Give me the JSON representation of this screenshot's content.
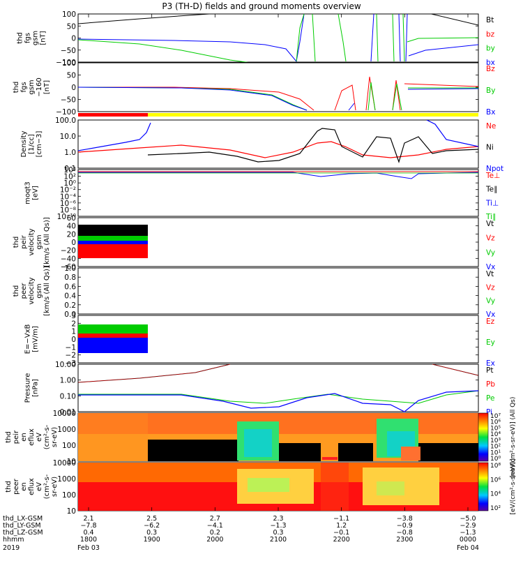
{
  "title": "P3 (TH-D) fields and ground moments overview",
  "colors": {
    "black": "#000000",
    "red": "#ff0000",
    "green": "#00cc00",
    "blue": "#0000ff",
    "yellow": "#ffff00"
  },
  "chart_data": [
    {
      "type": "line",
      "panel": "fgs",
      "ylabel": [
        "thd",
        "fgs",
        "gsm",
        "[nT]"
      ],
      "ylim": [
        -100,
        100
      ],
      "yticks": [
        "100",
        "50",
        "0",
        "−50",
        "−100"
      ],
      "legend": [
        {
          "name": "Bt",
          "color": "black"
        },
        {
          "name": "bz",
          "color": "red"
        },
        {
          "name": "by",
          "color": "green"
        },
        {
          "name": "bx",
          "color": "blue"
        }
      ]
    },
    {
      "type": "line",
      "panel": "fgs-1 clipped",
      "ylabel": [
        "thd",
        "fgs",
        "gsm",
        "−160",
        "[nT]"
      ],
      "ylim": [
        -125,
        125
      ],
      "yticks": [
        "100",
        "50",
        "0",
        "−50",
        "−100"
      ],
      "legend": [
        {
          "name": "Bz",
          "color": "red"
        },
        {
          "name": "By",
          "color": "green"
        },
        {
          "name": "Bx",
          "color": "blue"
        }
      ]
    },
    {
      "type": "line",
      "panel": "density",
      "ylabel": [
        "Density",
        "[1/cc]",
        "[cm−3]"
      ],
      "scale": "log",
      "ylim": [
        0.01,
        100
      ],
      "yticks": [
        "100.0",
        "10.0",
        "1.0",
        "0.1"
      ],
      "legend": [
        {
          "name": "Ne",
          "color": "red"
        },
        {
          "name": "Ni",
          "color": "black"
        },
        {
          "name": "Npot",
          "color": "blue"
        }
      ]
    },
    {
      "type": "line",
      "panel": "temperature",
      "ylabel": [
        "moqt3",
        "[eV]"
      ],
      "scale": "log",
      "yticks": [
        "10⁴",
        "10²",
        "10⁰",
        "10⁻²",
        "10⁻⁴",
        "10⁻⁶",
        "10⁻⁸",
        "10⁻¹⁰"
      ],
      "legend": [
        {
          "name": "Te⊥",
          "color": "red"
        },
        {
          "name": "Te∥",
          "color": "black"
        },
        {
          "name": "Ti⊥",
          "color": "blue"
        },
        {
          "name": "Ti∥",
          "color": "green"
        }
      ]
    },
    {
      "type": "line",
      "panel": "peir velocity",
      "ylabel": [
        "thd",
        "peir",
        "velocity",
        "gsm",
        "[km/s (All Qs)]"
      ],
      "ylim": [
        -60,
        60
      ],
      "yticks": [
        "60",
        "40",
        "20",
        "0",
        "−20",
        "−40",
        "−60"
      ],
      "legend": [
        {
          "name": "Vt",
          "color": "black"
        },
        {
          "name": "Vz",
          "color": "red"
        },
        {
          "name": "Vy",
          "color": "green"
        },
        {
          "name": "Vx",
          "color": "blue"
        }
      ]
    },
    {
      "type": "line",
      "panel": "peer velocity",
      "ylabel": [
        "thd",
        "peer",
        "velocity",
        "gsm",
        "[km/s (All Qs)]"
      ],
      "ylim": [
        0,
        1
      ],
      "yticks": [
        "1.0",
        "0.8",
        "0.6",
        "0.4",
        "0.2",
        "0.0"
      ],
      "legend": [
        {
          "name": "Vt",
          "color": "black"
        },
        {
          "name": "Vz",
          "color": "red"
        },
        {
          "name": "Vy",
          "color": "green"
        },
        {
          "name": "Vx",
          "color": "blue"
        }
      ]
    },
    {
      "type": "line",
      "panel": "E field",
      "ylabel": [
        "E=−VxB",
        "[mV/m]"
      ],
      "ylim": [
        -3,
        3
      ],
      "yticks": [
        "3",
        "2",
        "1",
        "0",
        "−1",
        "−2",
        "−3"
      ],
      "legend": [
        {
          "name": "Ez",
          "color": "red"
        },
        {
          "name": "Ey",
          "color": "green"
        },
        {
          "name": "Ex",
          "color": "blue"
        }
      ]
    },
    {
      "type": "line",
      "panel": "pressure",
      "ylabel": [
        "Pressure",
        "[nPa]"
      ],
      "scale": "log",
      "yticks": [
        "10.00",
        "1.00",
        "0.10",
        "0.01"
      ],
      "legend": [
        {
          "name": "Pt",
          "color": "black"
        },
        {
          "name": "Pb",
          "color": "red"
        },
        {
          "name": "Pe",
          "color": "green"
        },
        {
          "name": "Pi",
          "color": "blue"
        }
      ]
    },
    {
      "type": "heatmap",
      "panel": "peir spectrogram",
      "ylabel": [
        "thd",
        "peir",
        "en",
        "eflux",
        "eV",
        "(cm²-s-",
        "sr-eV)"
      ],
      "yticks": [
        "10000",
        "1000",
        "100",
        "10"
      ],
      "colorbar": {
        "label": "[eV/(cm²-s-sr-eV)] (All Qs)",
        "ticks": [
          "10⁷",
          "10⁶",
          "10⁵",
          "10⁴",
          "10³",
          "10²",
          "10¹",
          "10⁰"
        ]
      }
    },
    {
      "type": "heatmap",
      "panel": "peer spectrogram",
      "ylabel": [
        "thd",
        "peer",
        "en",
        "eflux",
        "eV",
        "(cm²-s-",
        "sr-eV)"
      ],
      "yticks": [
        "10000",
        "1000",
        "100",
        "10"
      ],
      "colorbar": {
        "label": "[eV/(cm²-s-sr-eV)]",
        "ticks": [
          "10⁸",
          "10⁶",
          "10⁴",
          "10²"
        ]
      }
    }
  ],
  "xaxis": {
    "rows": [
      {
        "label": "thd_LX-GSM",
        "values": [
          "2.1",
          "2.5",
          "2.7",
          "2.3",
          "−1.1",
          "−3.8",
          "−5.0"
        ]
      },
      {
        "label": "thd_LY-GSM",
        "values": [
          "−7.8",
          "−6.2",
          "−4.1",
          "−1.3",
          "1.2",
          "−0.9",
          "−2.9"
        ]
      },
      {
        "label": "thd_LZ-GSM",
        "values": [
          "0.4",
          "0.3",
          "0.2",
          "0.3",
          "−0.1",
          "−0.8",
          "−1.3"
        ]
      },
      {
        "label": "hhmm",
        "values": [
          "1800",
          "1900",
          "2000",
          "2100",
          "2200",
          "2300",
          "0000"
        ]
      }
    ],
    "year": "2019",
    "date_start": "Feb 03",
    "date_end": "Feb 04"
  }
}
